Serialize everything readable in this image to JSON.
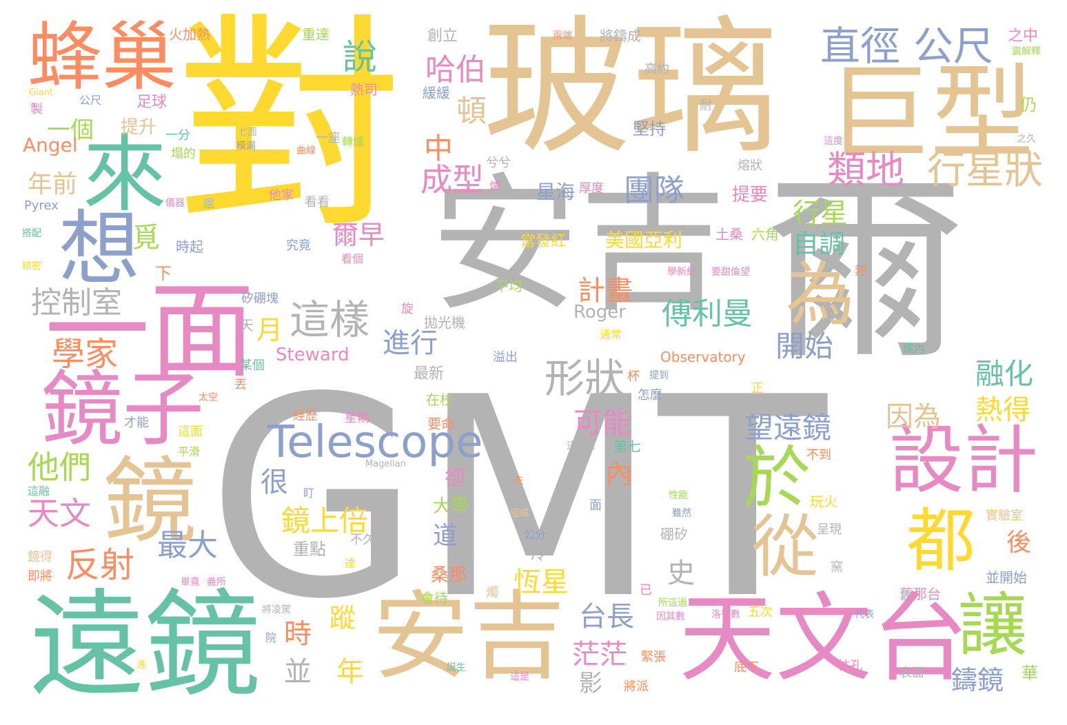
{
  "words": [
    {
      "text": "GMT",
      "color": "#b3b3b3"
    },
    {
      "text": "對",
      "color": "#ffd92f"
    },
    {
      "text": "玻璃",
      "color": "#e5c494"
    },
    {
      "text": "安吉",
      "color": "#b3b3b3"
    },
    {
      "text": "爾",
      "color": "#b3b3b3"
    },
    {
      "text": "巨型",
      "color": "#e5c494"
    },
    {
      "text": "遠鏡",
      "color": "#66c2a5"
    },
    {
      "text": "安吉",
      "color": "#e5c494"
    },
    {
      "text": "天文台",
      "color": "#e78ac3"
    },
    {
      "text": "一面",
      "color": "#e78ac3"
    },
    {
      "text": "鏡子",
      "color": "#e78ac3"
    },
    {
      "text": "鏡",
      "color": "#e5c494"
    },
    {
      "text": "蜂巢",
      "color": "#fc8d62"
    },
    {
      "text": "來",
      "color": "#66c2a5"
    },
    {
      "text": "想",
      "color": "#8da0cb"
    },
    {
      "text": "設計",
      "color": "#e78ac3"
    },
    {
      "text": "於",
      "color": "#a6d854"
    },
    {
      "text": "為",
      "color": "#e5c494"
    },
    {
      "text": "都",
      "color": "#ffd92f"
    },
    {
      "text": "從",
      "color": "#e5c494"
    },
    {
      "text": "讓",
      "color": "#a6d854"
    },
    {
      "text": "Telescope",
      "color": "#8da0cb"
    },
    {
      "text": "直徑",
      "color": "#8da0cb"
    },
    {
      "text": "公尺",
      "color": "#8da0cb"
    },
    {
      "text": "類地",
      "color": "#e78ac3"
    },
    {
      "text": "行星狀",
      "color": "#e5c494"
    },
    {
      "text": "這樣",
      "color": "#b3b3b3"
    },
    {
      "text": "形狀",
      "color": "#b3b3b3"
    },
    {
      "text": "控制室",
      "color": "#b3b3b3"
    },
    {
      "text": "學家",
      "color": "#fc8d62"
    },
    {
      "text": "反射",
      "color": "#fc8d62"
    },
    {
      "text": "他們",
      "color": "#a6d854"
    },
    {
      "text": "天文",
      "color": "#e78ac3"
    },
    {
      "text": "最大",
      "color": "#8da0cb"
    },
    {
      "text": "說",
      "color": "#66c2a5"
    },
    {
      "text": "哈伯",
      "color": "#e78ac3"
    },
    {
      "text": "頓",
      "color": "#e5c494"
    },
    {
      "text": "成型",
      "color": "#e78ac3"
    },
    {
      "text": "中",
      "color": "#fc8d62"
    },
    {
      "text": "進行",
      "color": "#8da0cb"
    },
    {
      "text": "團隊",
      "color": "#8da0cb"
    },
    {
      "text": "傅利曼",
      "color": "#66c2a5"
    },
    {
      "text": "計畫",
      "color": "#fc8d62"
    },
    {
      "text": "可能",
      "color": "#e78ac3"
    },
    {
      "text": "望遠鏡",
      "color": "#8da0cb"
    },
    {
      "text": "融化",
      "color": "#66c2a5"
    },
    {
      "text": "熱得",
      "color": "#ffd92f"
    },
    {
      "text": "因為",
      "color": "#e5c494"
    },
    {
      "text": "開始",
      "color": "#8da0cb"
    },
    {
      "text": "自調",
      "color": "#66c2a5"
    },
    {
      "text": "行星",
      "color": "#a6d854"
    },
    {
      "text": "美國亞利",
      "color": "#ffd92f"
    },
    {
      "text": "年前",
      "color": "#e5c494"
    },
    {
      "text": "一個",
      "color": "#a6d854"
    },
    {
      "text": "Angel",
      "color": "#fc8d62"
    },
    {
      "text": "提升",
      "color": "#e5c494"
    },
    {
      "text": "足球",
      "color": "#e78ac3"
    },
    {
      "text": "鏡上倍",
      "color": "#ffd92f"
    },
    {
      "text": "恆星",
      "color": "#ffd92f"
    },
    {
      "text": "台長",
      "color": "#8da0cb"
    },
    {
      "text": "茫茫",
      "color": "#e78ac3"
    },
    {
      "text": "鑄鏡",
      "color": "#8da0cb"
    },
    {
      "text": "後",
      "color": "#fc8d62"
    },
    {
      "text": "時",
      "color": "#fc8d62"
    },
    {
      "text": "年",
      "color": "#ffd92f"
    },
    {
      "text": "並",
      "color": "#b3b3b3"
    },
    {
      "text": "蹤",
      "color": "#ffd92f"
    },
    {
      "text": "很",
      "color": "#8da0cb"
    },
    {
      "text": "內",
      "color": "#fc8d62"
    },
    {
      "text": "月",
      "color": "#ffd92f"
    },
    {
      "text": "覓",
      "color": "#a6d854"
    },
    {
      "text": "爾早",
      "color": "#e78ac3"
    },
    {
      "text": "星海",
      "color": "#8da0cb"
    },
    {
      "text": "Steward",
      "color": "#e78ac3"
    },
    {
      "text": "Roger",
      "color": "#b3b3b3"
    },
    {
      "text": "Observatory",
      "color": "#fc8d62"
    },
    {
      "text": "Pyrex",
      "color": "#8da0cb"
    },
    {
      "text": "Giant",
      "color": "#ffd92f"
    },
    {
      "text": "Magellan",
      "color": "#b3b3b3"
    },
    {
      "text": "火加熱",
      "color": "#fc8d62"
    },
    {
      "text": "重達",
      "color": "#a6d854"
    },
    {
      "text": "創立",
      "color": "#b3b3b3"
    },
    {
      "text": "將鑄成",
      "color": "#b3b3b3"
    },
    {
      "text": "之中",
      "color": "#e78ac3"
    },
    {
      "text": "熱司",
      "color": "#e78ac3"
    },
    {
      "text": "緩緩",
      "color": "#8da0cb"
    },
    {
      "text": "高約",
      "color": "#b3b3b3"
    },
    {
      "text": "耐",
      "color": "#b3b3b3"
    },
    {
      "text": "仍",
      "color": "#a6d854"
    },
    {
      "text": "堅持",
      "color": "#8da0cb"
    },
    {
      "text": "提要",
      "color": "#e78ac3"
    },
    {
      "text": "土桑",
      "color": "#e78ac3"
    },
    {
      "text": "六角",
      "color": "#a6d854"
    },
    {
      "text": "當發紅",
      "color": "#ffd92f"
    },
    {
      "text": "平均",
      "color": "#a6d854"
    },
    {
      "text": "拋光機",
      "color": "#b3b3b3"
    },
    {
      "text": "最新",
      "color": "#b3b3b3"
    },
    {
      "text": "在校",
      "color": "#a6d854"
    },
    {
      "text": "經歷",
      "color": "#fc8d62"
    },
    {
      "text": "星期",
      "color": "#e78ac3"
    },
    {
      "text": "要命",
      "color": "#fc8d62"
    },
    {
      "text": "第七",
      "color": "#66c2a5"
    },
    {
      "text": "不到",
      "color": "#fc8d62"
    },
    {
      "text": "玩火",
      "color": "#ffd92f"
    },
    {
      "text": "實驗室",
      "color": "#e5c494"
    },
    {
      "text": "並開始",
      "color": "#8da0cb"
    },
    {
      "text": "舊那台",
      "color": "#e78ac3"
    },
    {
      "text": "五次",
      "color": "#ffd92f"
    },
    {
      "text": "底下",
      "color": "#fc8d62"
    },
    {
      "text": "柱孔",
      "color": "#e78ac3"
    },
    {
      "text": "表面",
      "color": "#b3b3b3"
    },
    {
      "text": "華",
      "color": "#a6d854"
    },
    {
      "text": "緊張",
      "color": "#fc8d62"
    },
    {
      "text": "將派",
      "color": "#fc8d62"
    },
    {
      "text": "大學",
      "color": "#a6d854"
    },
    {
      "text": "道",
      "color": "#8da0cb"
    },
    {
      "text": "卻",
      "color": "#e78ac3"
    },
    {
      "text": "重點",
      "color": "#b3b3b3"
    },
    {
      "text": "不久",
      "color": "#b3b3b3"
    },
    {
      "text": "桑那",
      "color": "#fc8d62"
    },
    {
      "text": "會待",
      "color": "#a6d854"
    },
    {
      "text": "冷",
      "color": "#b3b3b3"
    },
    {
      "text": "影",
      "color": "#b3b3b3"
    },
    {
      "text": "史",
      "color": "#b3b3b3"
    },
    {
      "text": "公分",
      "color": "#8da0cb"
    },
    {
      "text": "硼矽",
      "color": "#b3b3b3"
    },
    {
      "text": "呈現",
      "color": "#b3b3b3"
    },
    {
      "text": "面",
      "color": "#8da0cb"
    },
    {
      "text": "溢出",
      "color": "#8da0cb"
    },
    {
      "text": "通常",
      "color": "#ffd92f"
    },
    {
      "text": "怎麼",
      "color": "#8da0cb"
    },
    {
      "text": "才能",
      "color": "#8da0cb"
    },
    {
      "text": "這面",
      "color": "#ffd92f"
    },
    {
      "text": "平滑",
      "color": "#a6d854"
    },
    {
      "text": "某個",
      "color": "#66c2a5"
    },
    {
      "text": "丟",
      "color": "#fc8d62"
    },
    {
      "text": "太空",
      "color": "#fc8d62"
    },
    {
      "text": "矽硼塊",
      "color": "#8da0cb"
    },
    {
      "text": "天",
      "color": "#b3b3b3"
    },
    {
      "text": "旋",
      "color": "#e78ac3"
    },
    {
      "text": "究竟",
      "color": "#8da0cb"
    },
    {
      "text": "看個",
      "color": "#e78ac3"
    },
    {
      "text": "他家",
      "color": "#e78ac3"
    },
    {
      "text": "看看",
      "color": "#b3b3b3"
    },
    {
      "text": "時起",
      "color": "#8da0cb"
    },
    {
      "text": "下",
      "color": "#fc8d62"
    },
    {
      "text": "一座",
      "color": "#b3b3b3"
    },
    {
      "text": "轉爐",
      "color": "#a6d854"
    },
    {
      "text": "曲線",
      "color": "#fc8d62"
    },
    {
      "text": "一分",
      "color": "#66c2a5"
    },
    {
      "text": "塌的",
      "color": "#a6d854"
    },
    {
      "text": "七面",
      "color": "#b3b3b3"
    },
    {
      "text": "模漏",
      "color": "#8da0cb"
    },
    {
      "text": "公尺",
      "color": "#8da0cb"
    },
    {
      "text": "製",
      "color": "#e78ac3"
    },
    {
      "text": "熔狀",
      "color": "#b3b3b3"
    },
    {
      "text": "爐",
      "color": "#e78ac3"
    },
    {
      "text": "兮兮",
      "color": "#b3b3b3"
    },
    {
      "text": "厚度",
      "color": "#e78ac3"
    },
    {
      "text": "即將",
      "color": "#fc8d62"
    },
    {
      "text": "鏡得",
      "color": "#e5c494"
    },
    {
      "text": "這融",
      "color": "#66c2a5"
    },
    {
      "text": "院",
      "color": "#8da0cb"
    },
    {
      "text": "進",
      "color": "#ffd92f"
    },
    {
      "text": "誕生",
      "color": "#66c2a5"
    },
    {
      "text": "這是",
      "color": "#e78ac3"
    },
    {
      "text": "已",
      "color": "#e78ac3"
    },
    {
      "text": "正",
      "color": "#ffd92f"
    },
    {
      "text": "熱",
      "color": "#fc8d62"
    },
    {
      "text": "杯",
      "color": "#fc8d62"
    },
    {
      "text": "元",
      "color": "#fc8d62"
    },
    {
      "text": "盯",
      "color": "#8da0cb"
    },
    {
      "text": "組成",
      "color": "#e5c494"
    },
    {
      "text": "性能",
      "color": "#a6d854"
    },
    {
      "text": "雖然",
      "color": "#8da0cb"
    },
    {
      "text": "所這過",
      "color": "#a6d854"
    },
    {
      "text": "代表",
      "color": "#8da0cb"
    },
    {
      "text": "達",
      "color": "#ffd92f"
    },
    {
      "text": "窯",
      "color": "#b3b3b3"
    },
    {
      "text": "爐內",
      "color": "#66c2a5"
    },
    {
      "text": "搭配",
      "color": "#66c2a5"
    },
    {
      "text": "精密",
      "color": "#ffd92f"
    },
    {
      "text": "儀器",
      "color": "#e78ac3"
    },
    {
      "text": "園",
      "color": "#b3b3b3"
    },
    {
      "text": "學新紀",
      "color": "#e78ac3"
    },
    {
      "text": "要甜倫望",
      "color": "#e78ac3"
    },
    {
      "text": "洛後數",
      "color": "#e78ac3"
    },
    {
      "text": "因其數",
      "color": "#e78ac3"
    },
    {
      "text": "將凌駕",
      "color": "#b3b3b3"
    },
    {
      "text": "畢竟",
      "color": "#e78ac3"
    },
    {
      "text": "義所",
      "color": "#e78ac3"
    },
    {
      "text": "這過程",
      "color": "#b3b3b3"
    },
    {
      "text": "震解釋",
      "color": "#a6d854"
    },
    {
      "text": "之久",
      "color": "#b3b3b3"
    },
    {
      "text": "這度",
      "color": "#e78ac3"
    },
    {
      "text": "兩端",
      "color": "#fc8d62"
    },
    {
      "text": "提到",
      "color": "#8da0cb"
    },
    {
      "text": "燭",
      "color": "#e5c494"
    }
  ]
}
